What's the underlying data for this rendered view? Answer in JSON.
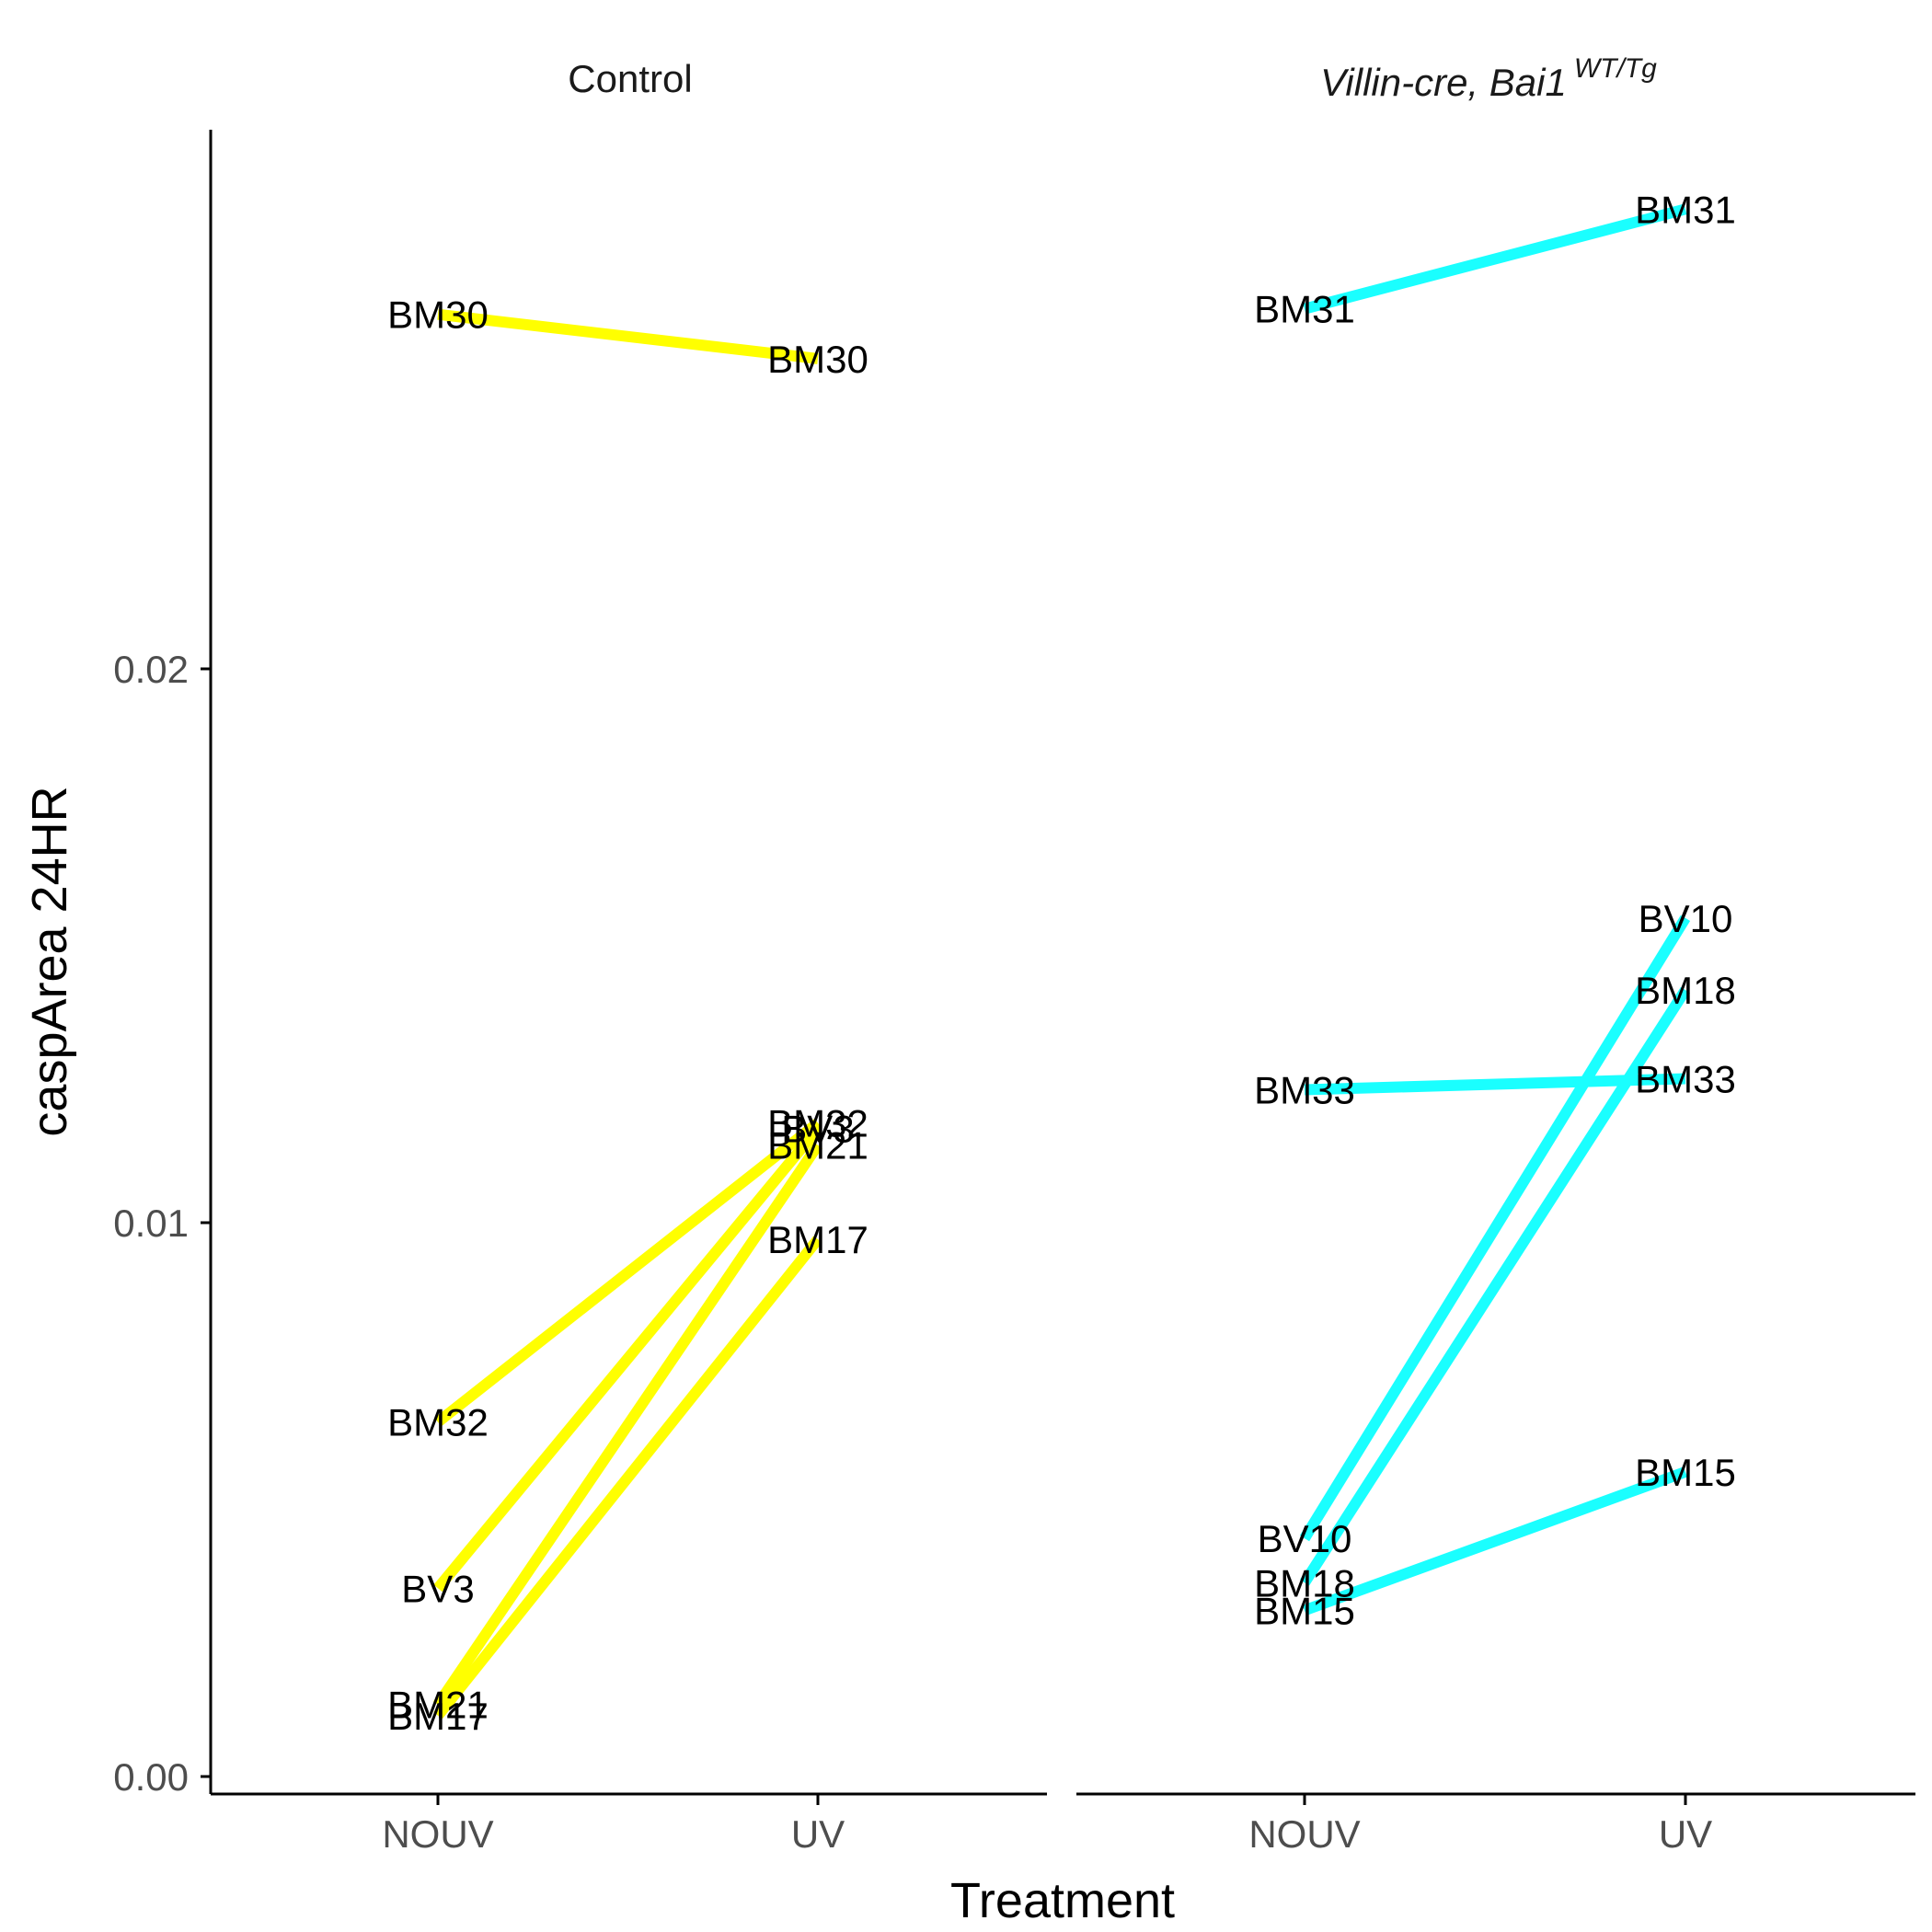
{
  "chart_data": {
    "type": "line",
    "xlabel": "Treatment",
    "ylabel": "caspArea 24HR",
    "categories": [
      "NOUV",
      "UV"
    ],
    "ylim": [
      0,
      0.0293
    ],
    "yticks": [
      0.0,
      0.01,
      0.02
    ],
    "ytick_labels": [
      "0.00",
      "0.01",
      "0.02"
    ],
    "grid": false,
    "panels": [
      {
        "title": "Control",
        "title_main": "",
        "title_sup": "",
        "color": "#ffff00",
        "series": [
          {
            "name": "BM30",
            "values": [
              0.0264,
              0.0256
            ]
          },
          {
            "name": "BM32",
            "values": [
              0.0064,
              0.0118
            ]
          },
          {
            "name": "BV3",
            "values": [
              0.0034,
              0.0117
            ]
          },
          {
            "name": "BM21",
            "values": [
              0.0013,
              0.0114
            ]
          },
          {
            "name": "BM17",
            "values": [
              0.0011,
              0.0097
            ]
          }
        ]
      },
      {
        "title": "",
        "title_main": "Villin-cre, Bai1",
        "title_sup": "WT/Tg",
        "color": "#1affff",
        "series": [
          {
            "name": "BM31",
            "values": [
              0.0265,
              0.0283
            ]
          },
          {
            "name": "BV10",
            "values": [
              0.0043,
              0.0155
            ]
          },
          {
            "name": "BM18",
            "values": [
              0.0035,
              0.0142
            ]
          },
          {
            "name": "BM33",
            "values": [
              0.0124,
              0.0126
            ]
          },
          {
            "name": "BM15",
            "values": [
              0.003,
              0.0055
            ]
          }
        ]
      }
    ]
  }
}
